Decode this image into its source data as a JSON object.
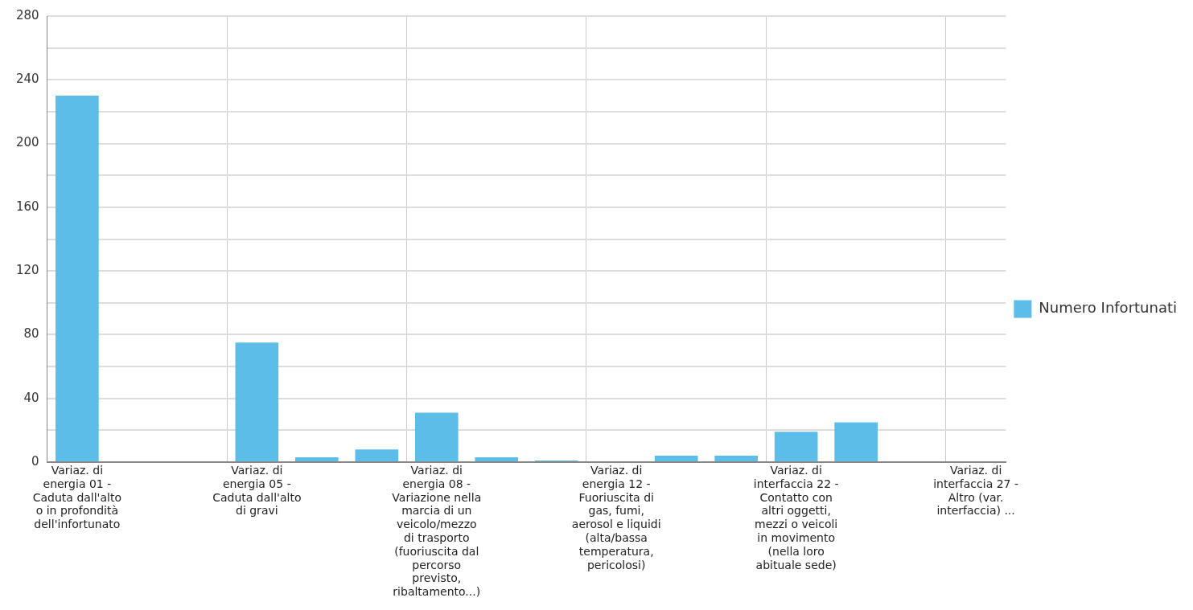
{
  "chart_data": {
    "type": "bar",
    "categories": [
      "Variaz. di energia 01 - Caduta dall'alto o in profondità dell'infortunato",
      null,
      null,
      "Variaz. di energia 05 - Caduta dall'alto di gravi",
      null,
      null,
      "Variaz. di energia 08 - Variazione nella marcia di un veicolo/mezzo di trasporto (fuoriuscita dal percorso previsto, ribaltamento...)",
      null,
      null,
      "Variaz. di energia 12 - Fuoriuscita di gas, fumi, aerosol e liquidi (alta/bassa temperatura, pericolosi)",
      null,
      null,
      "Variaz. di interfaccia 22 - Contatto con altri oggetti, mezzi o veicoli in movimento (nella loro abituale sede)",
      null,
      null,
      "Variaz. di interfaccia 27 - Altro (var. interfaccia) ..."
    ],
    "series": [
      {
        "name": "Numero Infortunati",
        "color": "#5cbde9",
        "values": [
          230,
          0,
          0,
          75,
          3,
          8,
          31,
          3,
          1,
          0,
          4,
          4,
          19,
          25,
          0,
          0
        ]
      }
    ],
    "ylim": [
      0,
      280
    ],
    "yticks": [
      0,
      {
        "value": 20,
        "label": null
      },
      40,
      {
        "value": 60,
        "label": null
      },
      80,
      {
        "value": 100,
        "label": null
      },
      120,
      {
        "value": 140,
        "label": null
      },
      160,
      {
        "value": 180,
        "label": null
      },
      200,
      {
        "value": 220,
        "label": null
      },
      240,
      {
        "value": 260,
        "label": null
      },
      280
    ],
    "grid": true,
    "legend": "right"
  }
}
